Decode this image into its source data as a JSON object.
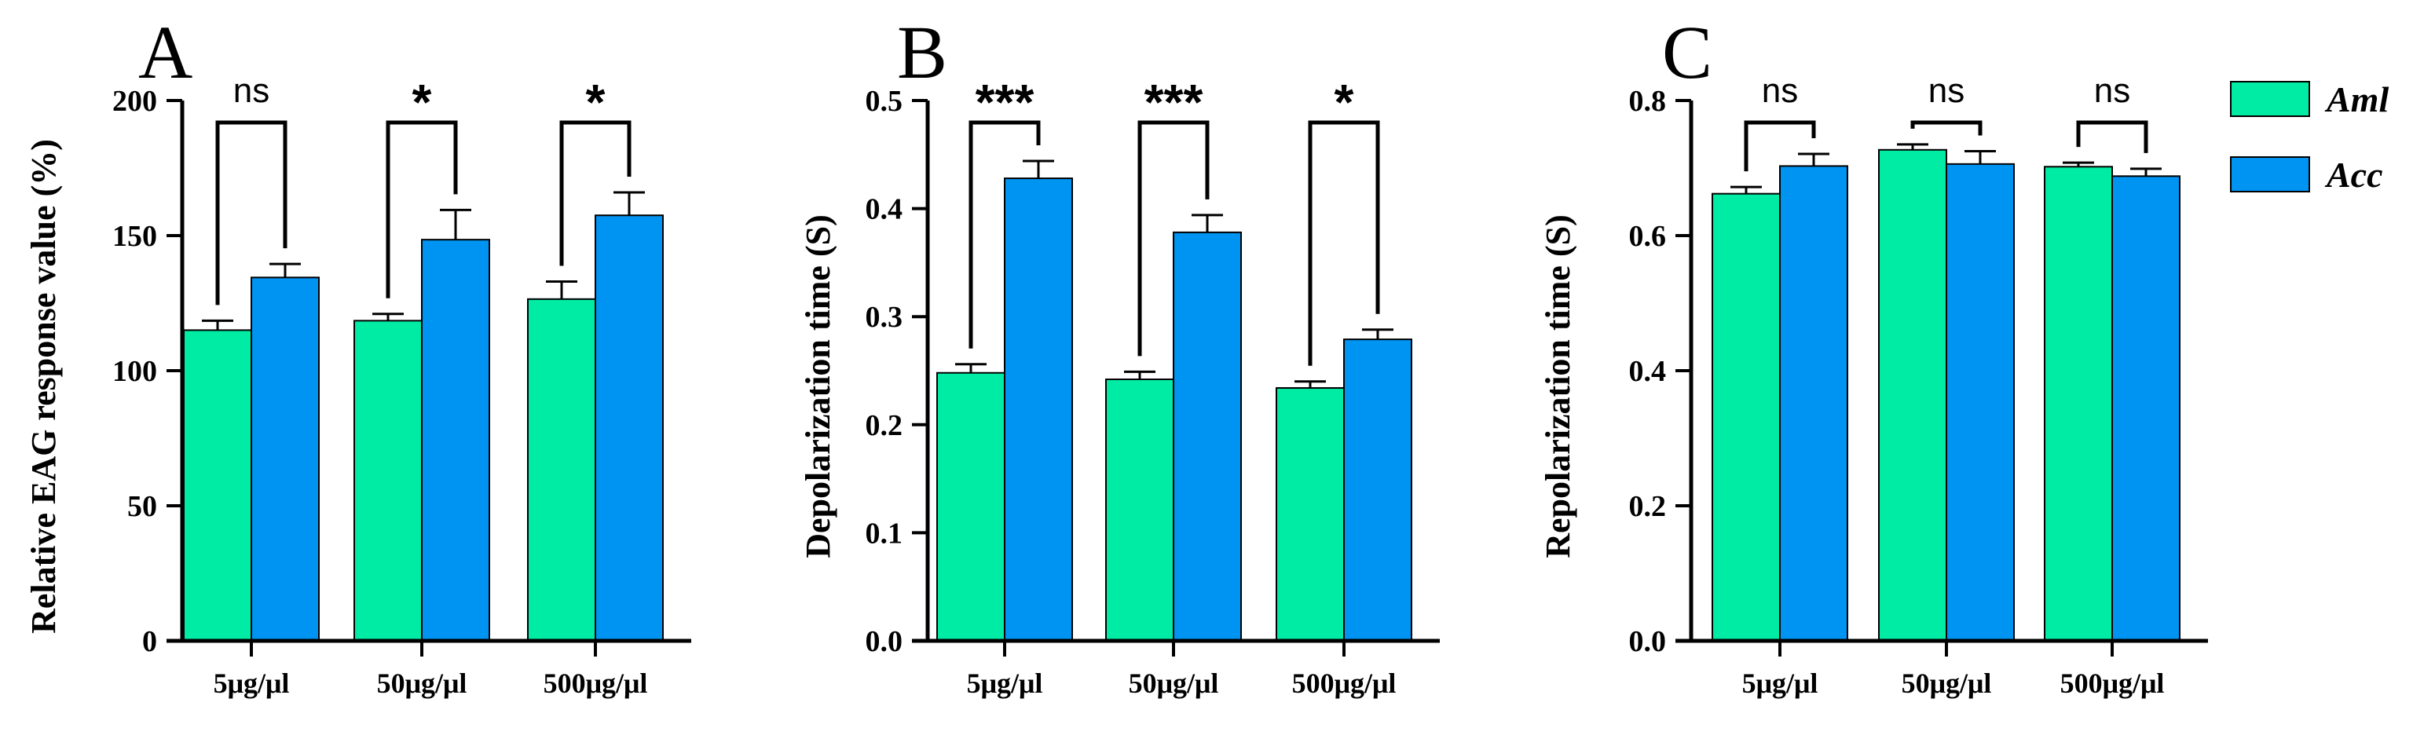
{
  "colors": {
    "aml": "#00EBA4",
    "acc": "#0094F2",
    "axis": "#000000"
  },
  "legend": {
    "items": [
      {
        "label": "Aml",
        "color": "#00EBA4"
      },
      {
        "label": "Acc",
        "color": "#0094F2"
      }
    ]
  },
  "chart_data": [
    {
      "type": "bar",
      "panel_label": "A",
      "title": "",
      "xlabel": "",
      "ylabel": "Relative EAG response value (%)",
      "ylim": [
        0,
        200
      ],
      "yticks": [
        0,
        50,
        100,
        150,
        200
      ],
      "ytick_labels": [
        "0",
        "50",
        "100",
        "150",
        "200"
      ],
      "categories": [
        "5μg/μl",
        "50μg/μl",
        "500μg/μl"
      ],
      "series": [
        {
          "name": "Aml",
          "values": [
            115,
            118.5,
            126.5
          ],
          "errors": [
            3.5,
            2.5,
            6.5
          ]
        },
        {
          "name": "Acc",
          "values": [
            134.5,
            148.5,
            157.5
          ],
          "errors": [
            5,
            11,
            8.5
          ]
        }
      ],
      "significance": [
        "ns",
        "*",
        "*"
      ]
    },
    {
      "type": "bar",
      "panel_label": "B",
      "title": "",
      "xlabel": "",
      "ylabel": "Depolarization time (S)",
      "ylim": [
        0,
        0.5
      ],
      "yticks": [
        0,
        0.1,
        0.2,
        0.3,
        0.4,
        0.5
      ],
      "ytick_labels": [
        "0.0",
        "0.1",
        "0.2",
        "0.3",
        "0.4",
        "0.5"
      ],
      "categories": [
        "5μg/μl",
        "50μg/μl",
        "500μg/μl"
      ],
      "series": [
        {
          "name": "Aml",
          "values": [
            0.248,
            0.242,
            0.234
          ],
          "errors": [
            0.008,
            0.007,
            0.006
          ]
        },
        {
          "name": "Acc",
          "values": [
            0.428,
            0.378,
            0.279
          ],
          "errors": [
            0.016,
            0.016,
            0.009
          ]
        }
      ],
      "significance": [
        "***",
        "***",
        "*"
      ]
    },
    {
      "type": "bar",
      "panel_label": "C",
      "title": "",
      "xlabel": "",
      "ylabel": "Repolarization time (S)",
      "ylim": [
        0,
        0.8
      ],
      "yticks": [
        0,
        0.2,
        0.4,
        0.6,
        0.8
      ],
      "ytick_labels": [
        "0.0",
        "0.2",
        "0.4",
        "0.6",
        "0.8"
      ],
      "categories": [
        "5μg/μl",
        "50μg/μl",
        "500μg/μl"
      ],
      "series": [
        {
          "name": "Aml",
          "values": [
            0.662,
            0.727,
            0.702
          ],
          "errors": [
            0.01,
            0.008,
            0.006
          ]
        },
        {
          "name": "Acc",
          "values": [
            0.703,
            0.706,
            0.688
          ],
          "errors": [
            0.018,
            0.019,
            0.011
          ]
        }
      ],
      "significance": [
        "ns",
        "ns",
        "ns"
      ]
    }
  ]
}
